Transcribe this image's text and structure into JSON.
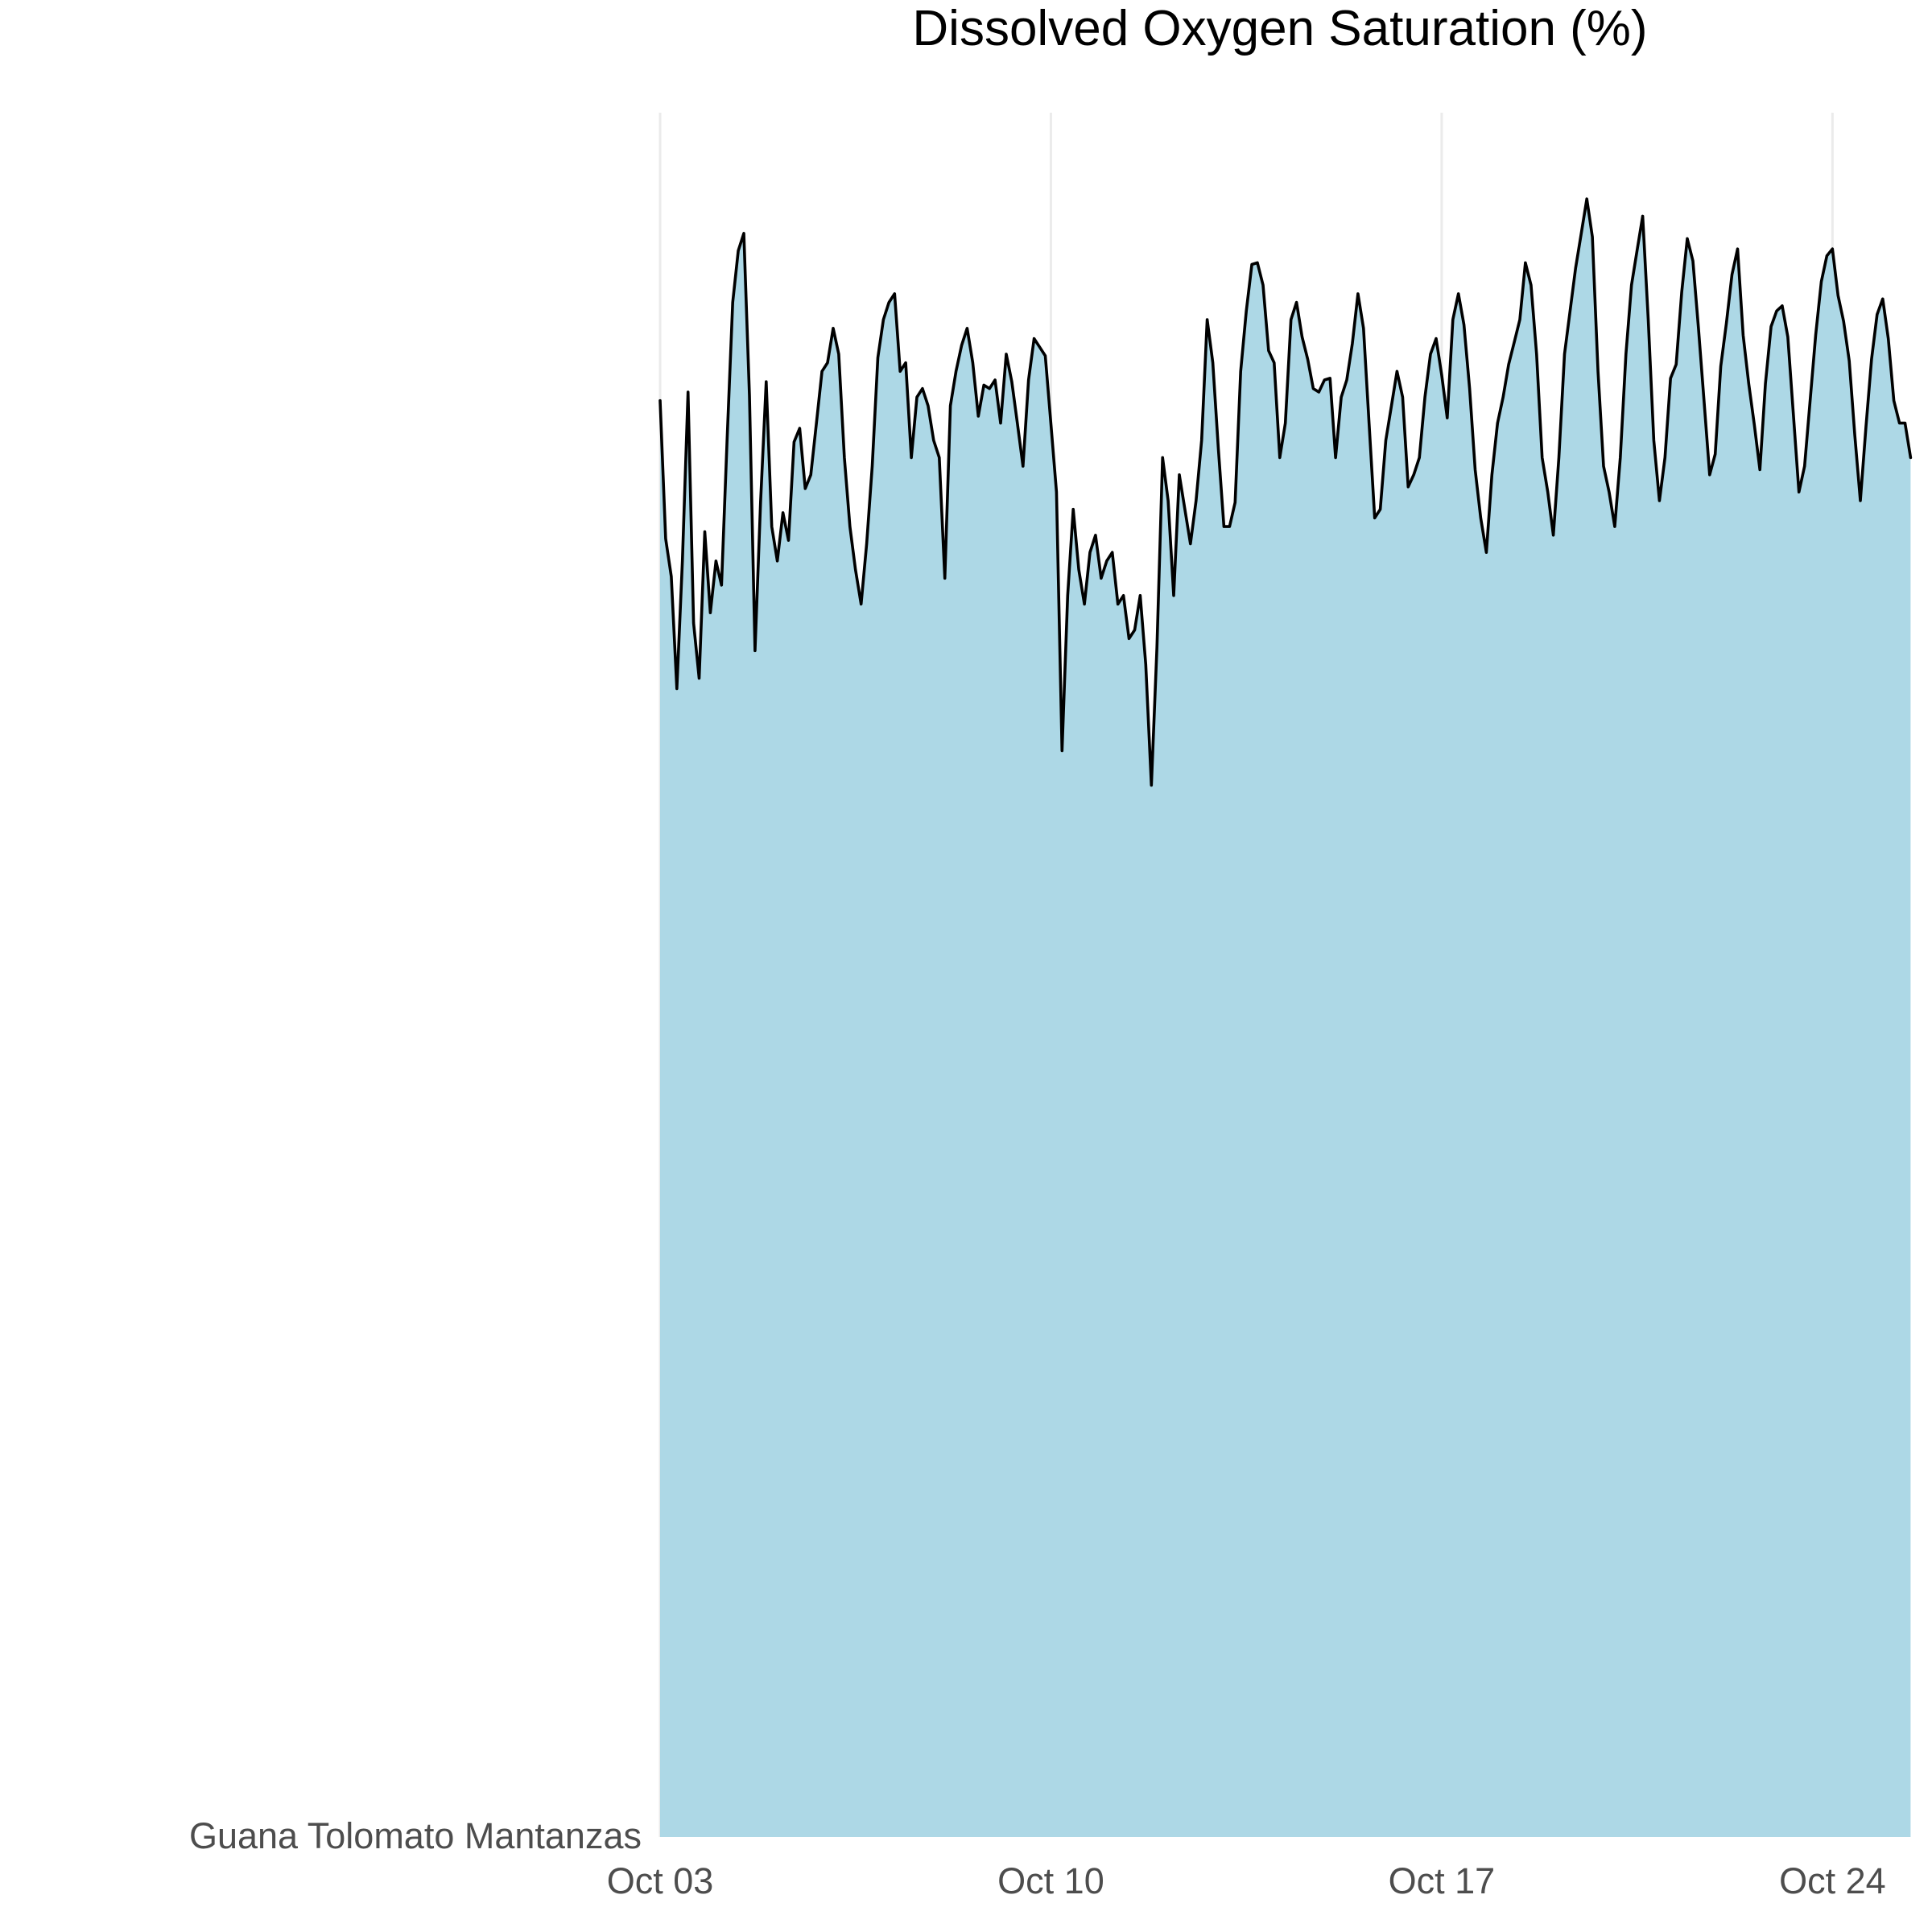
{
  "chart_data": {
    "type": "area",
    "title": "Dissolved Oxygen Saturation (%)",
    "xlabel": "",
    "ylabel": "",
    "row_label": "Guana Tolomato Mantanzas",
    "x_ticks": [
      "Oct 03",
      "Oct 10",
      "Oct 17",
      "Oct 24"
    ],
    "x_range": [
      "Oct 03",
      "Oct 25"
    ],
    "y_range_relative": [
      0,
      1
    ],
    "grid": "vertical only",
    "fill_color": "#add8e6",
    "line_color": "#000000",
    "series": [
      {
        "points": [
          [
            0.0,
            0.833
          ],
          [
            0.1,
            0.753
          ],
          [
            0.2,
            0.731
          ],
          [
            0.3,
            0.666
          ],
          [
            0.4,
            0.74
          ],
          [
            0.5,
            0.838
          ],
          [
            0.6,
            0.704
          ],
          [
            0.7,
            0.672
          ],
          [
            0.8,
            0.757
          ],
          [
            0.9,
            0.71
          ],
          [
            1.0,
            0.74
          ],
          [
            1.1,
            0.726
          ],
          [
            1.2,
            0.81
          ],
          [
            1.3,
            0.89
          ],
          [
            1.4,
            0.92
          ],
          [
            1.5,
            0.93
          ],
          [
            1.6,
            0.836
          ],
          [
            1.7,
            0.688
          ],
          [
            1.8,
            0.774
          ],
          [
            1.9,
            0.844
          ],
          [
            2.0,
            0.76
          ],
          [
            2.1,
            0.74
          ],
          [
            2.2,
            0.768
          ],
          [
            2.3,
            0.752
          ],
          [
            2.4,
            0.809
          ],
          [
            2.5,
            0.817
          ],
          [
            2.6,
            0.782
          ],
          [
            2.7,
            0.79
          ],
          [
            2.8,
            0.82
          ],
          [
            2.9,
            0.85
          ],
          [
            3.0,
            0.855
          ],
          [
            3.1,
            0.875
          ],
          [
            3.2,
            0.86
          ],
          [
            3.3,
            0.8
          ],
          [
            3.4,
            0.76
          ],
          [
            3.5,
            0.735
          ],
          [
            3.6,
            0.715
          ],
          [
            3.7,
            0.75
          ],
          [
            3.8,
            0.795
          ],
          [
            3.9,
            0.858
          ],
          [
            4.0,
            0.88
          ],
          [
            4.1,
            0.89
          ],
          [
            4.2,
            0.895
          ],
          [
            4.3,
            0.85
          ],
          [
            4.4,
            0.855
          ],
          [
            4.5,
            0.8
          ],
          [
            4.6,
            0.835
          ],
          [
            4.7,
            0.84
          ],
          [
            4.8,
            0.83
          ],
          [
            4.9,
            0.81
          ],
          [
            5.0,
            0.8
          ],
          [
            5.1,
            0.73
          ],
          [
            5.2,
            0.83
          ],
          [
            5.3,
            0.85
          ],
          [
            5.4,
            0.865
          ],
          [
            5.5,
            0.875
          ],
          [
            5.6,
            0.855
          ],
          [
            5.7,
            0.824
          ],
          [
            5.8,
            0.842
          ],
          [
            5.9,
            0.84
          ],
          [
            6.0,
            0.845
          ],
          [
            6.1,
            0.82
          ],
          [
            6.2,
            0.86
          ],
          [
            6.3,
            0.844
          ],
          [
            6.4,
            0.82
          ],
          [
            6.5,
            0.795
          ],
          [
            6.6,
            0.845
          ],
          [
            6.7,
            0.869
          ],
          [
            6.8,
            0.864
          ],
          [
            6.9,
            0.859
          ],
          [
            7.0,
            0.82
          ],
          [
            7.1,
            0.78
          ],
          [
            7.2,
            0.63
          ],
          [
            7.3,
            0.72
          ],
          [
            7.4,
            0.77
          ],
          [
            7.5,
            0.735
          ],
          [
            7.6,
            0.715
          ],
          [
            7.7,
            0.745
          ],
          [
            7.8,
            0.755
          ],
          [
            7.9,
            0.73
          ],
          [
            8.0,
            0.74
          ],
          [
            8.1,
            0.745
          ],
          [
            8.2,
            0.715
          ],
          [
            8.3,
            0.72
          ],
          [
            8.4,
            0.695
          ],
          [
            8.5,
            0.7
          ],
          [
            8.6,
            0.72
          ],
          [
            8.7,
            0.68
          ],
          [
            8.8,
            0.61
          ],
          [
            8.9,
            0.69
          ],
          [
            9.0,
            0.8
          ],
          [
            9.1,
            0.775
          ],
          [
            9.2,
            0.72
          ],
          [
            9.3,
            0.79
          ],
          [
            9.4,
            0.77
          ],
          [
            9.5,
            0.75
          ],
          [
            9.6,
            0.775
          ],
          [
            9.7,
            0.81
          ],
          [
            9.8,
            0.88
          ],
          [
            9.9,
            0.855
          ],
          [
            10.0,
            0.805
          ],
          [
            10.1,
            0.76
          ],
          [
            10.2,
            0.76
          ],
          [
            10.3,
            0.774
          ],
          [
            10.4,
            0.85
          ],
          [
            10.5,
            0.885
          ],
          [
            10.6,
            0.912
          ],
          [
            10.7,
            0.913
          ],
          [
            10.8,
            0.9
          ],
          [
            10.9,
            0.862
          ],
          [
            11.0,
            0.855
          ],
          [
            11.1,
            0.8
          ],
          [
            11.2,
            0.82
          ],
          [
            11.3,
            0.88
          ],
          [
            11.4,
            0.89
          ],
          [
            11.5,
            0.87
          ],
          [
            11.6,
            0.857
          ],
          [
            11.7,
            0.84
          ],
          [
            11.8,
            0.838
          ],
          [
            11.9,
            0.845
          ],
          [
            12.0,
            0.846
          ],
          [
            12.1,
            0.8
          ],
          [
            12.2,
            0.835
          ],
          [
            12.3,
            0.845
          ],
          [
            12.4,
            0.866
          ],
          [
            12.5,
            0.895
          ],
          [
            12.6,
            0.875
          ],
          [
            12.7,
            0.82
          ],
          [
            12.8,
            0.765
          ],
          [
            12.9,
            0.77
          ],
          [
            13.0,
            0.81
          ],
          [
            13.1,
            0.83
          ],
          [
            13.2,
            0.85
          ],
          [
            13.3,
            0.835
          ],
          [
            13.4,
            0.783
          ],
          [
            13.5,
            0.79
          ],
          [
            13.6,
            0.8
          ],
          [
            13.7,
            0.835
          ],
          [
            13.8,
            0.86
          ],
          [
            13.9,
            0.869
          ],
          [
            14.0,
            0.848
          ],
          [
            14.1,
            0.823
          ],
          [
            14.2,
            0.88
          ],
          [
            14.3,
            0.895
          ],
          [
            14.4,
            0.877
          ],
          [
            14.5,
            0.84
          ],
          [
            14.6,
            0.793
          ],
          [
            14.7,
            0.765
          ],
          [
            14.8,
            0.745
          ],
          [
            14.9,
            0.79
          ],
          [
            15.0,
            0.82
          ],
          [
            15.1,
            0.835
          ],
          [
            15.2,
            0.854
          ],
          [
            15.3,
            0.867
          ],
          [
            15.4,
            0.88
          ],
          [
            15.5,
            0.913
          ],
          [
            15.6,
            0.9
          ],
          [
            15.7,
            0.86
          ],
          [
            15.8,
            0.8
          ],
          [
            15.9,
            0.78
          ],
          [
            16.0,
            0.755
          ],
          [
            16.1,
            0.8
          ],
          [
            16.2,
            0.86
          ],
          [
            16.3,
            0.885
          ],
          [
            16.4,
            0.91
          ],
          [
            16.5,
            0.93
          ],
          [
            16.6,
            0.95
          ],
          [
            16.7,
            0.928
          ],
          [
            16.8,
            0.85
          ],
          [
            16.9,
            0.795
          ],
          [
            17.0,
            0.78
          ],
          [
            17.1,
            0.76
          ],
          [
            17.2,
            0.8
          ],
          [
            17.3,
            0.86
          ],
          [
            17.4,
            0.9
          ],
          [
            17.5,
            0.92
          ],
          [
            17.6,
            0.94
          ],
          [
            17.7,
            0.88
          ],
          [
            17.8,
            0.81
          ],
          [
            17.9,
            0.775
          ],
          [
            18.0,
            0.8
          ],
          [
            18.1,
            0.846
          ],
          [
            18.2,
            0.854
          ],
          [
            18.3,
            0.896
          ],
          [
            18.4,
            0.927
          ],
          [
            18.5,
            0.914
          ],
          [
            18.6,
            0.875
          ],
          [
            18.7,
            0.833
          ],
          [
            18.8,
            0.79
          ],
          [
            18.9,
            0.802
          ],
          [
            19.0,
            0.853
          ],
          [
            19.1,
            0.878
          ],
          [
            19.2,
            0.906
          ],
          [
            19.3,
            0.921
          ],
          [
            19.4,
            0.871
          ],
          [
            19.5,
            0.843
          ],
          [
            19.6,
            0.819
          ],
          [
            19.7,
            0.793
          ],
          [
            19.8,
            0.843
          ],
          [
            19.9,
            0.876
          ],
          [
            20.0,
            0.885
          ],
          [
            20.1,
            0.888
          ],
          [
            20.2,
            0.87
          ],
          [
            20.3,
            0.825
          ],
          [
            20.4,
            0.78
          ],
          [
            20.5,
            0.795
          ],
          [
            20.6,
            0.833
          ],
          [
            20.7,
            0.871
          ],
          [
            20.8,
            0.902
          ],
          [
            20.9,
            0.917
          ],
          [
            21.0,
            0.921
          ],
          [
            21.1,
            0.894
          ],
          [
            21.2,
            0.879
          ],
          [
            21.3,
            0.856
          ],
          [
            21.4,
            0.813
          ],
          [
            21.5,
            0.775
          ],
          [
            21.6,
            0.818
          ],
          [
            21.7,
            0.857
          ],
          [
            21.8,
            0.883
          ],
          [
            21.9,
            0.892
          ],
          [
            22.0,
            0.869
          ],
          [
            22.1,
            0.833
          ],
          [
            22.2,
            0.82
          ],
          [
            22.3,
            0.82
          ],
          [
            22.4,
            0.8
          ]
        ]
      }
    ]
  }
}
